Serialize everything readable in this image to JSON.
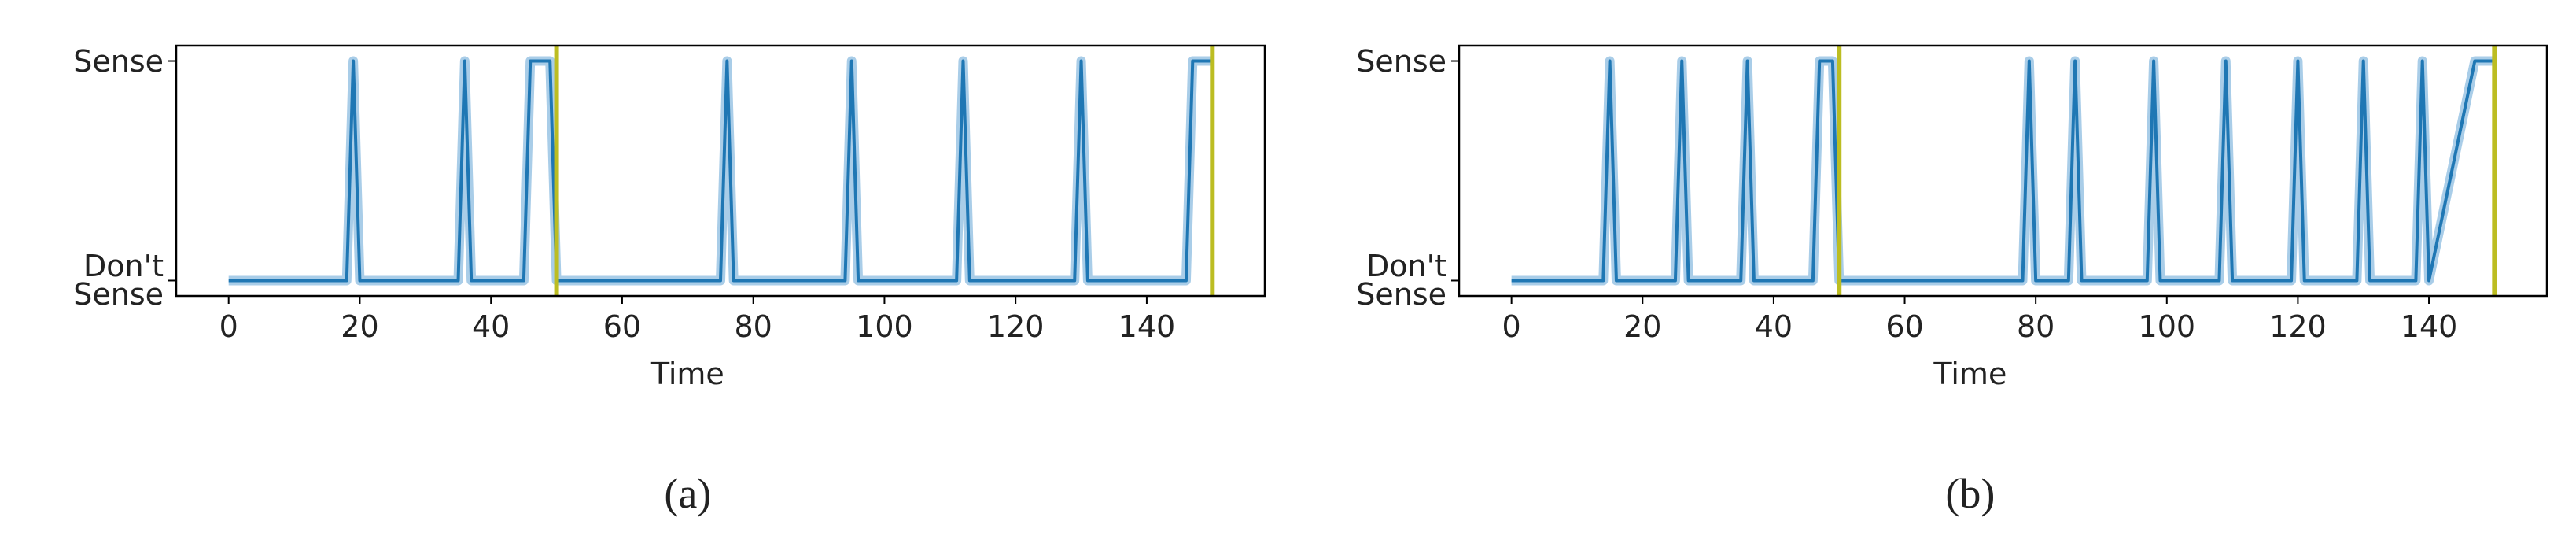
{
  "chart_data": [
    {
      "type": "line",
      "xlabel": "Time",
      "caption": "(a)",
      "xlim": [
        -8,
        158
      ],
      "ylim": [
        -0.07,
        1.07
      ],
      "xticks": [
        0,
        20,
        40,
        60,
        80,
        100,
        120,
        140
      ],
      "yticks": [
        {
          "value": 0,
          "label": "Don't Sense"
        },
        {
          "value": 1,
          "label": "Sense"
        }
      ],
      "series": [
        {
          "color": "#1f77b4",
          "x": [
            0,
            18,
            19,
            20,
            35,
            36,
            37,
            45,
            46,
            49,
            50,
            75,
            76,
            77,
            94,
            95,
            96,
            111,
            112,
            113,
            129,
            130,
            131,
            146,
            147,
            150
          ],
          "values": [
            0,
            0,
            1,
            0,
            0,
            1,
            0,
            0,
            1,
            1,
            0,
            0,
            1,
            0,
            0,
            1,
            0,
            0,
            1,
            0,
            0,
            1,
            0,
            0,
            1,
            1
          ]
        }
      ],
      "vlines": [
        50,
        150
      ],
      "vline_color": "#bcbd22"
    },
    {
      "type": "line",
      "xlabel": "Time",
      "caption": "(b)",
      "xlim": [
        -8,
        158
      ],
      "ylim": [
        -0.07,
        1.07
      ],
      "xticks": [
        0,
        20,
        40,
        60,
        80,
        100,
        120,
        140
      ],
      "yticks": [
        {
          "value": 0,
          "label": "Don't Sense"
        },
        {
          "value": 1,
          "label": "Sense"
        }
      ],
      "series": [
        {
          "color": "#1f77b4",
          "x": [
            0,
            14,
            15,
            16,
            25,
            26,
            27,
            35,
            36,
            37,
            46,
            47,
            49,
            50,
            78,
            79,
            80,
            85,
            86,
            87,
            97,
            98,
            99,
            108,
            109,
            110,
            119,
            120,
            121,
            129,
            130,
            131,
            138,
            139,
            140,
            147,
            150
          ],
          "values": [
            0,
            0,
            1,
            0,
            0,
            1,
            0,
            0,
            1,
            0,
            0,
            1,
            1,
            0,
            0,
            1,
            0,
            0,
            1,
            0,
            0,
            1,
            0,
            0,
            1,
            0,
            0,
            1,
            0,
            0,
            1,
            0,
            0,
            1,
            0,
            1,
            1
          ]
        }
      ],
      "vlines": [
        50,
        150
      ],
      "vline_color": "#bcbd22"
    }
  ]
}
